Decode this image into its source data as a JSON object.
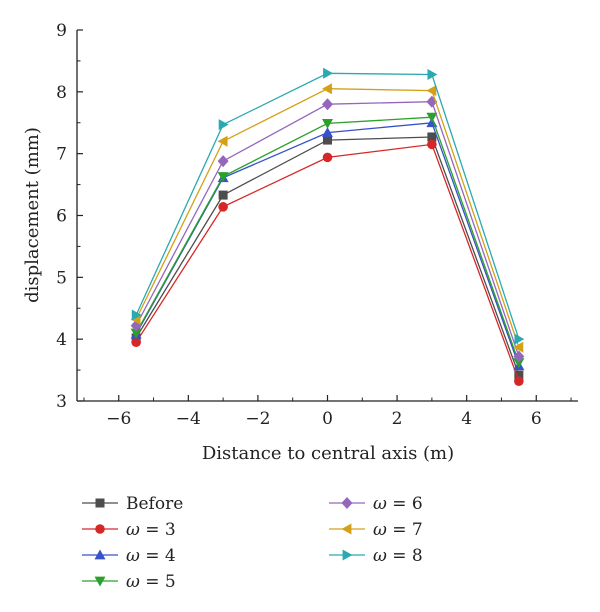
{
  "chart_data": {
    "type": "line",
    "title": "",
    "xlabel": "Distance to central axis (m)",
    "ylabel": "displacement (mm)",
    "xlim": [
      -7.2,
      7.2
    ],
    "ylim": [
      3,
      9
    ],
    "xticks": [
      -6,
      -4,
      -2,
      0,
      2,
      4,
      6
    ],
    "yticks": [
      3,
      4,
      5,
      6,
      7,
      8,
      9
    ],
    "xtick_labels": [
      "−6",
      "−4",
      "−2",
      "0",
      "2",
      "4",
      "6"
    ],
    "ytick_labels": [
      "3",
      "4",
      "5",
      "6",
      "7",
      "8",
      "9"
    ],
    "grid": false,
    "legend_position": "below",
    "x": [
      -5.5,
      -3,
      0,
      3,
      5.5
    ],
    "series": [
      {
        "name": "Before",
        "omega": "",
        "color": "#4d4d4d",
        "marker": "square",
        "values": [
          4.02,
          6.33,
          7.22,
          7.27,
          3.42
        ]
      },
      {
        "name": "= 3",
        "omega": "ω",
        "color": "#d62728",
        "marker": "circle",
        "values": [
          3.95,
          6.14,
          6.94,
          7.15,
          3.32
        ]
      },
      {
        "name": "= 4",
        "omega": "ω",
        "color": "#3852c8",
        "marker": "triangle-up",
        "values": [
          4.08,
          6.61,
          7.34,
          7.5,
          3.57
        ]
      },
      {
        "name": "= 5",
        "omega": "ω",
        "color": "#2ca02c",
        "marker": "triangle-down",
        "values": [
          4.1,
          6.63,
          7.49,
          7.59,
          3.62
        ]
      },
      {
        "name": "= 6",
        "omega": "ω",
        "color": "#9467bd",
        "marker": "diamond",
        "values": [
          4.22,
          6.88,
          7.8,
          7.84,
          3.72
        ]
      },
      {
        "name": "= 7",
        "omega": "ω",
        "color": "#d4a017",
        "marker": "triangle-left",
        "values": [
          4.32,
          7.2,
          8.05,
          8.02,
          3.87
        ]
      },
      {
        "name": "= 8",
        "omega": "ω",
        "color": "#2aa9b0",
        "marker": "triangle-right",
        "values": [
          4.39,
          7.47,
          8.3,
          8.28,
          4.0
        ]
      }
    ]
  }
}
